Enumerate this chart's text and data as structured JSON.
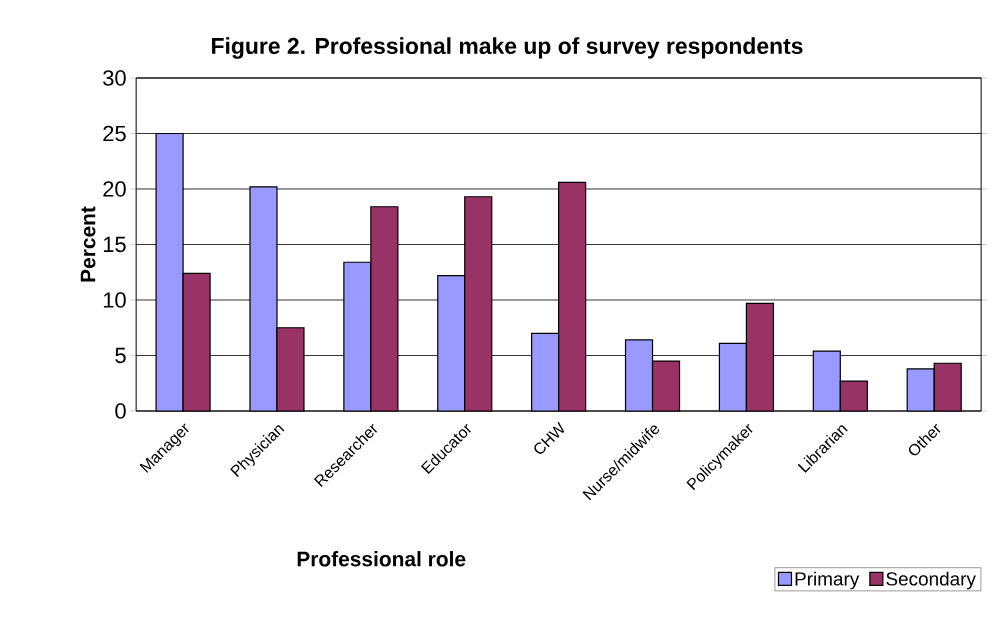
{
  "chart_data": {
    "type": "bar",
    "title": "Figure 2. Professional make up of survey respondents",
    "xlabel": "Professional role",
    "ylabel": "Percent",
    "categories": [
      "Manager",
      "Physician",
      "Researcher",
      "Educator",
      "CHW",
      "Nurse/midwife",
      "Policymaker",
      "Librarian",
      "Other"
    ],
    "series": [
      {
        "name": "Primary",
        "color": "#9999ff",
        "values": [
          25.0,
          20.2,
          13.4,
          12.2,
          7.0,
          6.4,
          6.1,
          5.4,
          3.8
        ]
      },
      {
        "name": "Secondary",
        "color": "#993366",
        "values": [
          12.4,
          7.5,
          18.4,
          19.3,
          20.6,
          4.5,
          9.7,
          2.7,
          4.3
        ]
      }
    ],
    "ylim": [
      0,
      30
    ],
    "yticks": [
      0,
      5,
      10,
      15,
      20,
      25,
      30
    ],
    "grid": "y",
    "legend": "bottom right"
  }
}
